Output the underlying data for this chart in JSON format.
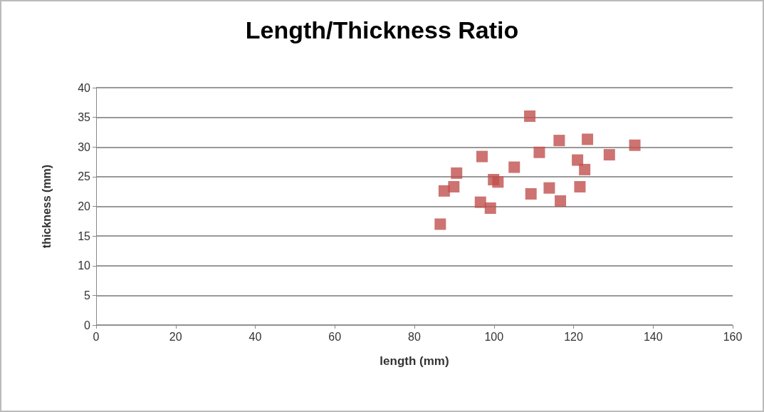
{
  "chart_data": {
    "type": "scatter",
    "title": "Length/Thickness Ratio",
    "xlabel": "length (mm)",
    "ylabel": "thickness (mm)",
    "xlim": [
      0,
      160
    ],
    "xticks": [
      0,
      20,
      40,
      60,
      80,
      100,
      120,
      140,
      160
    ],
    "ylim": [
      0,
      40
    ],
    "yticks": [
      0,
      5,
      10,
      15,
      20,
      25,
      30,
      35,
      40
    ],
    "grid": "y",
    "marker": "square",
    "series": [
      {
        "color": "#c0504d",
        "x": [
          86.5,
          87.5,
          89.9,
          90.6,
          97.0,
          96.6,
          99.1,
          99.9,
          101.0,
          105.1,
          109.0,
          109.3,
          111.4,
          113.9,
          116.4,
          116.7,
          121.0,
          121.6,
          122.8,
          123.5,
          129.0,
          135.4
        ],
        "values": [
          17.0,
          22.6,
          23.3,
          25.6,
          28.4,
          20.7,
          19.7,
          24.5,
          24.1,
          26.6,
          35.2,
          22.1,
          29.1,
          23.1,
          31.1,
          20.9,
          27.8,
          23.3,
          26.2,
          31.3,
          28.7,
          30.3
        ]
      }
    ]
  }
}
